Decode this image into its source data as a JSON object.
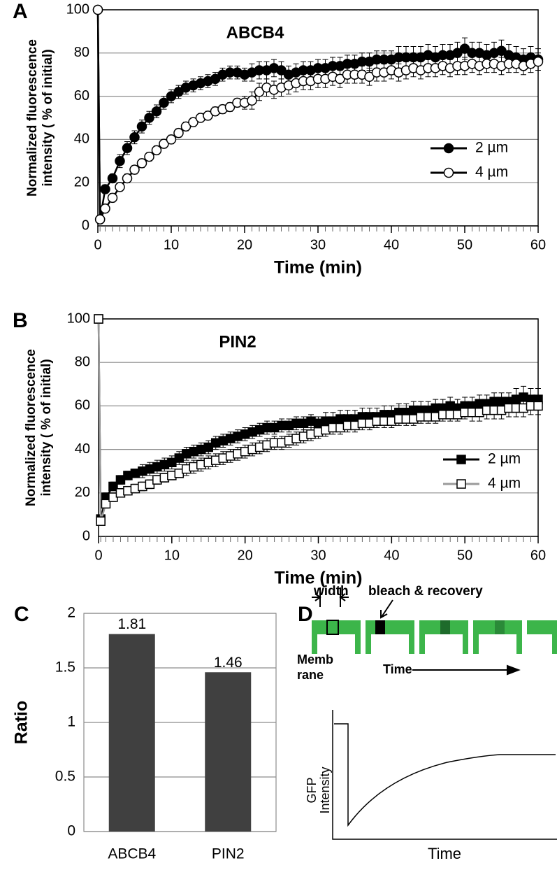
{
  "chart_data": [
    {
      "type": "line",
      "panel": "A",
      "title": "ABCB4",
      "xlabel": "Time (min)",
      "ylabel": [
        "Normalized  fluorescence",
        "intensity ( % of initial)"
      ],
      "x": [
        0,
        0.3,
        1,
        2,
        3,
        4,
        5,
        6,
        7,
        8,
        9,
        10,
        11,
        12,
        13,
        14,
        15,
        16,
        17,
        18,
        19,
        20,
        21,
        22,
        23,
        24,
        25,
        26,
        27,
        28,
        29,
        30,
        31,
        32,
        33,
        34,
        35,
        36,
        37,
        38,
        39,
        40,
        41,
        42,
        43,
        44,
        45,
        46,
        47,
        48,
        49,
        50,
        51,
        52,
        53,
        54,
        55,
        56,
        57,
        58,
        59,
        60
      ],
      "series": [
        {
          "name": "2 µm",
          "color": "#000000",
          "fill": "#000000",
          "marker": "circle",
          "values": [
            100,
            3,
            17,
            22,
            30,
            36,
            41,
            46,
            50,
            53,
            57,
            60,
            62,
            64,
            65,
            66,
            67,
            68,
            70,
            71,
            71,
            70,
            71,
            72,
            72,
            73,
            72,
            70,
            71,
            72,
            72,
            73,
            73,
            74,
            74,
            75,
            75,
            76,
            76,
            77,
            77,
            77,
            78,
            78,
            78,
            78,
            79,
            78,
            79,
            79,
            80,
            82,
            80,
            80,
            79,
            80,
            81,
            79,
            78,
            77,
            78,
            77
          ],
          "errors": [
            0,
            1,
            2,
            2,
            3,
            3,
            3,
            3,
            3,
            3,
            3,
            3,
            3,
            3,
            3,
            3,
            3,
            3,
            3,
            3,
            3,
            3,
            4,
            4,
            4,
            4,
            4,
            4,
            4,
            4,
            4,
            4,
            4,
            4,
            4,
            4,
            4,
            4,
            4,
            4,
            4,
            4,
            5,
            5,
            5,
            5,
            5,
            5,
            5,
            5,
            5,
            5,
            5,
            5,
            5,
            5,
            5,
            5,
            5,
            5,
            5,
            5
          ]
        },
        {
          "name": "4 µm",
          "color": "#000000",
          "fill": "#ffffff",
          "marker": "circle",
          "values": [
            100,
            3,
            8,
            13,
            18,
            22,
            26,
            29,
            32,
            35,
            38,
            40,
            43,
            46,
            48,
            50,
            51,
            53,
            54,
            55,
            57,
            57,
            58,
            62,
            64,
            63,
            64,
            65,
            66,
            67,
            67,
            68,
            68,
            69,
            68,
            70,
            70,
            70,
            69,
            71,
            71,
            72,
            71,
            72,
            73,
            72,
            73,
            73,
            74,
            73,
            74,
            74,
            75,
            74,
            75,
            75,
            74,
            75,
            75,
            74,
            75,
            76
          ],
          "errors": [
            0,
            1,
            2,
            2,
            2,
            2,
            2,
            2,
            2,
            2,
            2,
            2,
            2,
            2,
            2,
            2,
            2,
            2,
            2,
            2,
            2,
            3,
            4,
            4,
            4,
            4,
            4,
            4,
            4,
            4,
            4,
            4,
            4,
            4,
            4,
            4,
            4,
            4,
            4,
            4,
            4,
            4,
            4,
            4,
            4,
            4,
            4,
            4,
            4,
            4,
            4,
            4,
            4,
            4,
            4,
            4,
            4,
            4,
            4,
            4,
            4,
            4
          ]
        }
      ],
      "xlim": [
        0,
        60
      ],
      "xticks": [
        0,
        10,
        20,
        30,
        40,
        50,
        60
      ],
      "ylim": [
        0,
        100
      ],
      "yticks": [
        0,
        20,
        40,
        60,
        80,
        100
      ],
      "grid": true,
      "legend": "right"
    },
    {
      "type": "line",
      "panel": "B",
      "title": "PIN2",
      "xlabel": "Time (min)",
      "ylabel": [
        "Normalized  fluorescence",
        "intensity ( % of initial)"
      ],
      "x": [
        0,
        0.3,
        1,
        2,
        3,
        4,
        5,
        6,
        7,
        8,
        9,
        10,
        11,
        12,
        13,
        14,
        15,
        16,
        17,
        18,
        19,
        20,
        21,
        22,
        23,
        24,
        25,
        26,
        27,
        28,
        29,
        30,
        31,
        32,
        33,
        34,
        35,
        36,
        37,
        38,
        39,
        40,
        41,
        42,
        43,
        44,
        45,
        46,
        47,
        48,
        49,
        50,
        51,
        52,
        53,
        54,
        55,
        56,
        57,
        58,
        59,
        60
      ],
      "series": [
        {
          "name": "2 µm",
          "color": "#000000",
          "fill": "#000000",
          "marker": "square",
          "values": [
            100,
            8,
            18,
            23,
            26,
            28,
            29,
            30,
            31,
            32,
            33,
            34,
            36,
            38,
            39,
            40,
            41,
            43,
            44,
            45,
            46,
            47,
            48,
            49,
            50,
            50,
            51,
            51,
            52,
            52,
            53,
            52,
            53,
            53,
            54,
            54,
            54,
            55,
            55,
            55,
            56,
            56,
            57,
            57,
            58,
            58,
            58,
            59,
            59,
            60,
            59,
            60,
            60,
            61,
            61,
            62,
            62,
            62,
            63,
            64,
            63,
            63
          ],
          "errors": [
            0,
            1,
            2,
            2,
            2,
            2,
            2,
            3,
            3,
            3,
            3,
            3,
            3,
            3,
            3,
            3,
            3,
            3,
            3,
            3,
            3,
            3,
            3,
            3,
            3,
            3,
            3,
            3,
            3,
            3,
            3,
            3,
            4,
            4,
            4,
            4,
            4,
            4,
            4,
            4,
            4,
            4,
            4,
            4,
            4,
            4,
            4,
            4,
            4,
            4,
            4,
            4,
            4,
            4,
            4,
            4,
            4,
            4,
            5,
            5,
            5,
            5
          ]
        },
        {
          "name": "4 µm",
          "color": "#9a9a9a",
          "fill": "#ffffff",
          "marker": "square",
          "values": [
            100,
            7,
            15,
            18,
            20,
            21,
            22,
            23,
            24,
            26,
            27,
            28,
            29,
            31,
            32,
            33,
            34,
            35,
            36,
            37,
            38,
            39,
            40,
            41,
            42,
            43,
            43,
            44,
            45,
            46,
            47,
            48,
            49,
            50,
            50,
            51,
            51,
            52,
            52,
            53,
            53,
            53,
            54,
            54,
            54,
            55,
            55,
            55,
            56,
            56,
            56,
            57,
            57,
            57,
            58,
            58,
            58,
            59,
            59,
            59,
            60,
            60
          ],
          "errors": [
            0,
            1,
            2,
            2,
            2,
            2,
            2,
            2,
            2,
            2,
            2,
            2,
            2,
            3,
            3,
            3,
            3,
            3,
            3,
            3,
            3,
            3,
            3,
            3,
            3,
            3,
            3,
            3,
            3,
            3,
            3,
            3,
            3,
            3,
            3,
            3,
            3,
            3,
            3,
            3,
            3,
            3,
            3,
            3,
            3,
            3,
            3,
            3,
            3,
            3,
            3,
            3,
            4,
            4,
            4,
            4,
            4,
            4,
            4,
            4,
            4,
            4
          ]
        }
      ],
      "xlim": [
        0,
        60
      ],
      "xticks": [
        0,
        10,
        20,
        30,
        40,
        50,
        60
      ],
      "ylim": [
        0,
        100
      ],
      "yticks": [
        0,
        20,
        40,
        60,
        80,
        100
      ],
      "grid": true,
      "legend": "right"
    },
    {
      "type": "bar",
      "panel": "C",
      "ylabel": "Ratio",
      "categories": [
        "ABCB4",
        "PIN2"
      ],
      "values": [
        1.81,
        1.46
      ],
      "color": "#404040",
      "ylim": [
        0,
        2
      ],
      "yticks": [
        0,
        0.5,
        1,
        1.5,
        2
      ],
      "grid": true
    }
  ],
  "diagram": {
    "panel": "D",
    "width": "width",
    "bleach": "bleach & recovery",
    "membrane": [
      "Memb",
      "rane"
    ],
    "time_arrow": "Time",
    "ylabel": [
      "GFP",
      "Intensity"
    ],
    "xlabel": "Time"
  }
}
